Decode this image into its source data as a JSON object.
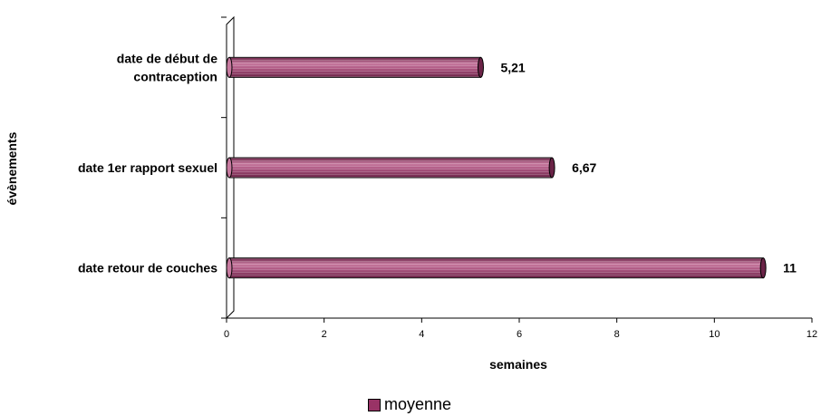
{
  "chart_data": {
    "type": "bar",
    "orientation": "horizontal",
    "categories": [
      [
        "date de début de",
        "contraception"
      ],
      [
        "date 1er rapport sexuel"
      ],
      [
        "date retour de couches"
      ]
    ],
    "series": [
      {
        "name": "moyenne",
        "values": [
          5.21,
          6.67,
          11
        ],
        "labels": [
          "5,21",
          "6,67",
          "11"
        ]
      }
    ],
    "xlabel": "semaines",
    "ylabel": "évènements",
    "xlim": [
      0,
      12
    ],
    "xticks": [
      0,
      2,
      4,
      6,
      8,
      10,
      12
    ],
    "grid": false,
    "legend_position": "bottom",
    "colors": {
      "bar": "#993366",
      "bar_light": "#c77a9f",
      "bar_dark": "#6b2347",
      "axis": "#000000"
    }
  }
}
